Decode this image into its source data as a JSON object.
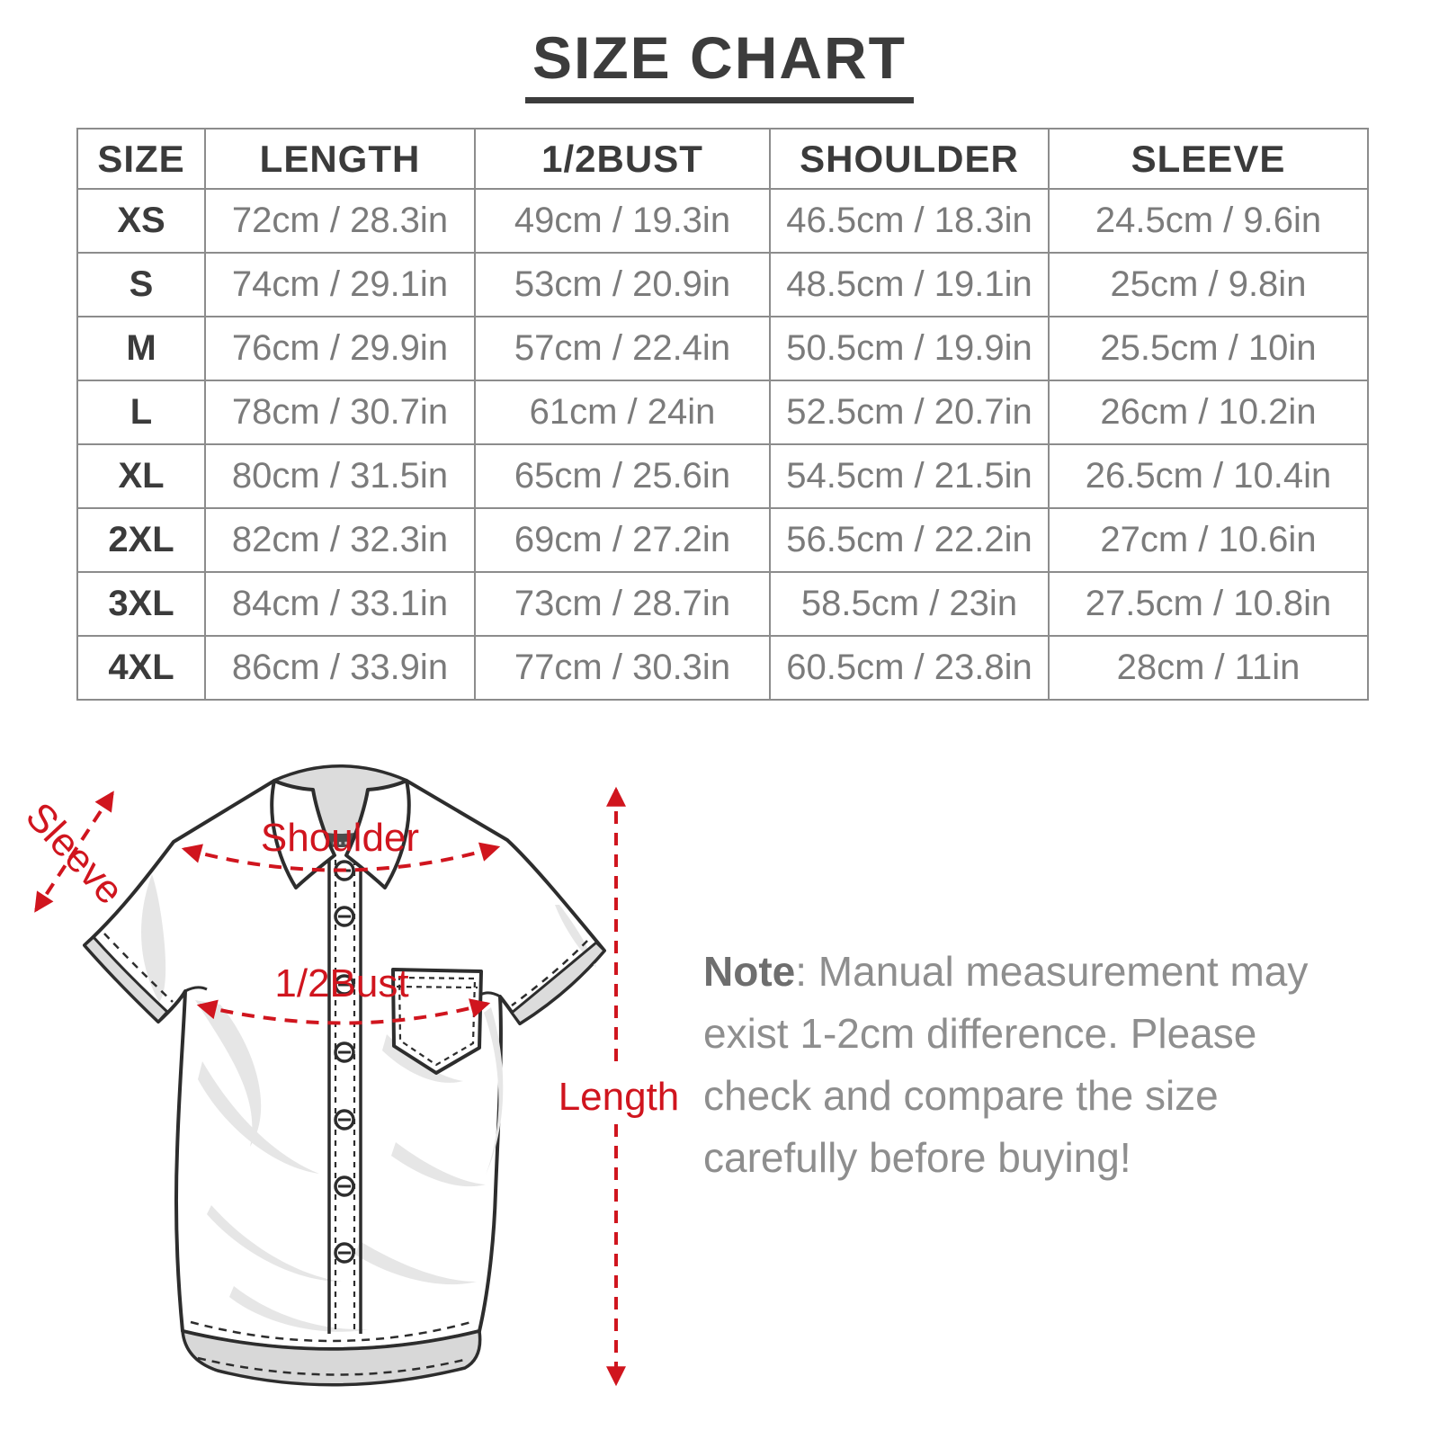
{
  "title": "SIZE CHART",
  "table": {
    "headers": [
      "SIZE",
      "LENGTH",
      "1/2BUST",
      "SHOULDER",
      "SLEEVE"
    ],
    "rows": [
      {
        "size": "XS",
        "length": "72cm / 28.3in",
        "half_bust": "49cm / 19.3in",
        "shoulder": "46.5cm / 18.3in",
        "sleeve": "24.5cm / 9.6in"
      },
      {
        "size": "S",
        "length": "74cm / 29.1in",
        "half_bust": "53cm / 20.9in",
        "shoulder": "48.5cm / 19.1in",
        "sleeve": "25cm / 9.8in"
      },
      {
        "size": "M",
        "length": "76cm / 29.9in",
        "half_bust": "57cm / 22.4in",
        "shoulder": "50.5cm / 19.9in",
        "sleeve": "25.5cm / 10in"
      },
      {
        "size": "L",
        "length": "78cm / 30.7in",
        "half_bust": "61cm / 24in",
        "shoulder": "52.5cm / 20.7in",
        "sleeve": "26cm / 10.2in"
      },
      {
        "size": "XL",
        "length": "80cm / 31.5in",
        "half_bust": "65cm / 25.6in",
        "shoulder": "54.5cm / 21.5in",
        "sleeve": "26.5cm / 10.4in"
      },
      {
        "size": "2XL",
        "length": "82cm / 32.3in",
        "half_bust": "69cm / 27.2in",
        "shoulder": "56.5cm / 22.2in",
        "sleeve": "27cm / 10.6in"
      },
      {
        "size": "3XL",
        "length": "84cm / 33.1in",
        "half_bust": "73cm / 28.7in",
        "shoulder": "58.5cm / 23in",
        "sleeve": "27.5cm / 10.8in"
      },
      {
        "size": "4XL",
        "length": "86cm / 33.9in",
        "half_bust": "77cm / 30.3in",
        "shoulder": "60.5cm / 23.8in",
        "sleeve": "28cm / 11in"
      }
    ]
  },
  "diagram": {
    "labels": {
      "sleeve": "Sleeve",
      "shoulder": "Shoulder",
      "half_bust": "1/2Bust",
      "length": "Length"
    },
    "annotation_color": "#d0151e"
  },
  "note": {
    "label": "Note",
    "text": ": Manual measurement may exist 1-2cm difference. Please check and compare the size carefully before buying!"
  }
}
